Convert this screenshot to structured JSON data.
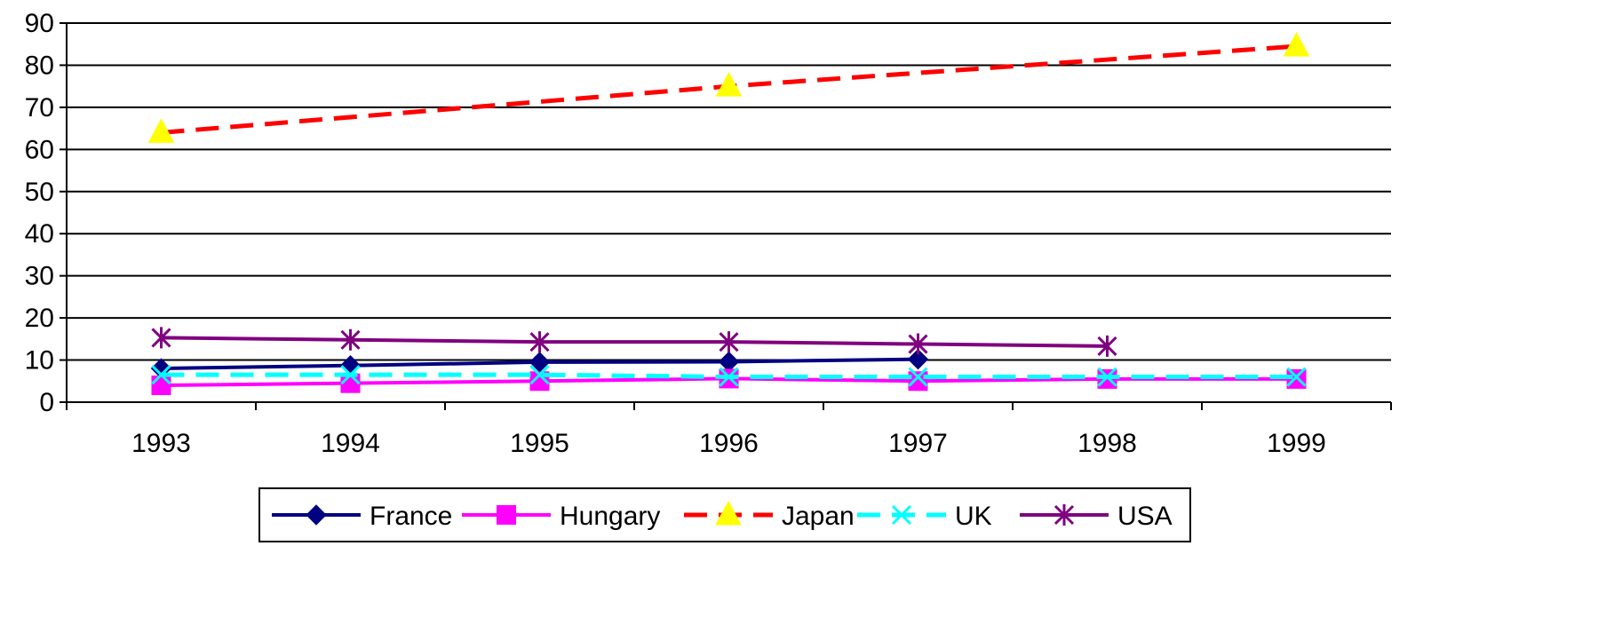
{
  "chart_data": {
    "type": "line",
    "title": "",
    "xlabel": "",
    "ylabel": "",
    "categories": [
      "1993",
      "1994",
      "1995",
      "1996",
      "1997",
      "1998",
      "1999"
    ],
    "ylim": [
      0,
      90
    ],
    "yticks": [
      0,
      10,
      20,
      30,
      40,
      50,
      60,
      70,
      80,
      90
    ],
    "grid": "horizontal",
    "legend_position": "bottom",
    "series": [
      {
        "name": "France",
        "color": "#000080",
        "dash": "solid",
        "marker": "diamond",
        "values": [
          8,
          8.7,
          9.5,
          9.6,
          10.2,
          null,
          null
        ]
      },
      {
        "name": "Hungary",
        "color": "#FF00FF",
        "dash": "solid",
        "marker": "square",
        "values": [
          4,
          4.5,
          5,
          5.6,
          5,
          5.5,
          5.5
        ]
      },
      {
        "name": "Japan",
        "color": "#FF0000",
        "dash": "dashed",
        "marker": "triangle",
        "marker_color": "#FFFF00",
        "values": [
          64,
          null,
          null,
          75,
          null,
          null,
          84.5
        ]
      },
      {
        "name": "UK",
        "color": "#00FFFF",
        "dash": "dashed",
        "marker": "x",
        "values": [
          6.5,
          6.5,
          6.5,
          6,
          6,
          6,
          6
        ]
      },
      {
        "name": "USA",
        "color": "#800080",
        "dash": "solid",
        "marker": "asterisk",
        "values": [
          15.3,
          14.8,
          14.3,
          14.3,
          13.8,
          13.3,
          null
        ]
      }
    ]
  }
}
